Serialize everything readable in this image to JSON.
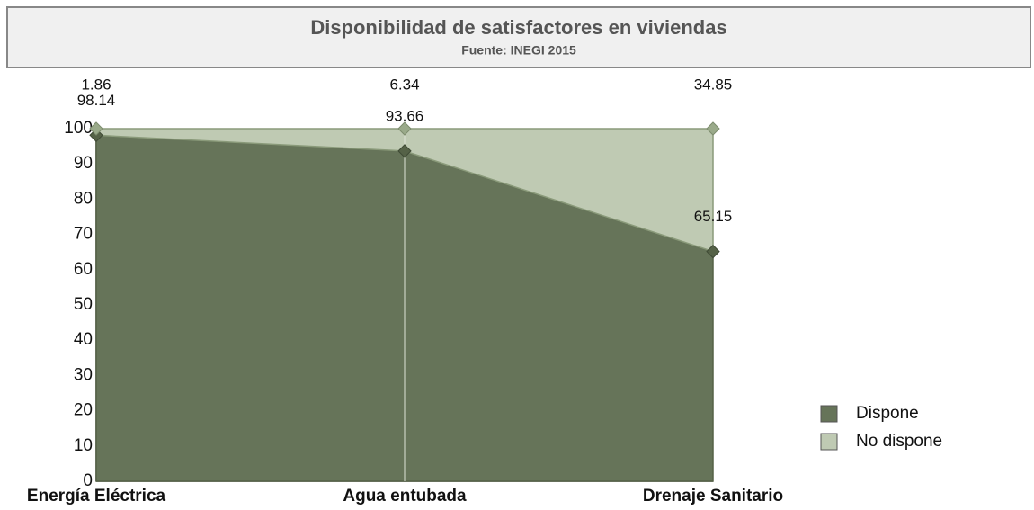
{
  "chart_data": {
    "type": "stacked_area",
    "title": "Disponibilidad de satisfactores en viviendas",
    "subtitle": "Fuente: INEGI 2015",
    "categories": [
      "Energía Eléctrica",
      "Agua entubada",
      "Drenaje Sanitario"
    ],
    "series": [
      {
        "name": "Dispone",
        "color": "#667459",
        "values": [
          98.14,
          93.66,
          65.15
        ]
      },
      {
        "name": "No dispone",
        "color": "#bfcab3",
        "values": [
          1.86,
          6.34,
          34.85
        ]
      }
    ],
    "ylim": [
      0,
      100
    ],
    "yticks": [
      0,
      10,
      20,
      30,
      40,
      50,
      60,
      70,
      80,
      90,
      100
    ],
    "grid": true,
    "legend": "right"
  }
}
